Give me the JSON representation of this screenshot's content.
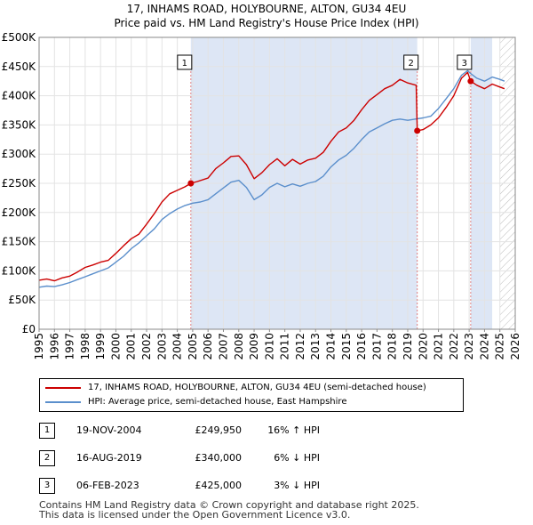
{
  "title_line1": "17, INHAMS ROAD, HOLYBOURNE, ALTON, GU34 4EU",
  "title_line2": "Price paid vs. HM Land Registry's House Price Index (HPI)",
  "chart_data": {
    "type": "line",
    "title": "17, INHAMS ROAD, HOLYBOURNE, ALTON, GU34 4EU — Price paid vs. HM Land Registry's House Price Index (HPI)",
    "xlim": [
      1995,
      2026
    ],
    "ylim": [
      0,
      500000
    ],
    "x_ticks": [
      1995,
      1996,
      1997,
      1998,
      1999,
      2000,
      2001,
      2002,
      2003,
      2004,
      2005,
      2006,
      2007,
      2008,
      2009,
      2010,
      2011,
      2012,
      2013,
      2014,
      2015,
      2016,
      2017,
      2018,
      2019,
      2020,
      2021,
      2022,
      2023,
      2024,
      2025,
      2026
    ],
    "y_ticks": [
      {
        "value": 0,
        "label": "£0"
      },
      {
        "value": 50000,
        "label": "£50K"
      },
      {
        "value": 100000,
        "label": "£100K"
      },
      {
        "value": 150000,
        "label": "£150K"
      },
      {
        "value": 200000,
        "label": "£200K"
      },
      {
        "value": 250000,
        "label": "£250K"
      },
      {
        "value": 300000,
        "label": "£300K"
      },
      {
        "value": 350000,
        "label": "£350K"
      },
      {
        "value": 400000,
        "label": "£400K"
      },
      {
        "value": 450000,
        "label": "£450K"
      },
      {
        "value": 500000,
        "label": "£500K"
      }
    ],
    "shaded_ranges": [
      [
        2004.88,
        2019.62
      ],
      [
        2023.1,
        2024.5
      ]
    ],
    "hatched_from": 2025.0,
    "series": [
      {
        "name": "17, INHAMS ROAD, HOLYBOURNE, ALTON, GU34 4EU (semi-detached house)",
        "color": "#cc0000",
        "points": [
          [
            1995.0,
            84000
          ],
          [
            1995.5,
            86000
          ],
          [
            1996.0,
            83000
          ],
          [
            1996.5,
            88000
          ],
          [
            1997.0,
            91000
          ],
          [
            1997.5,
            98000
          ],
          [
            1998.0,
            106000
          ],
          [
            1998.5,
            110000
          ],
          [
            1999.0,
            115000
          ],
          [
            1999.5,
            118000
          ],
          [
            2000.0,
            130000
          ],
          [
            2000.5,
            143000
          ],
          [
            2001.0,
            155000
          ],
          [
            2001.5,
            163000
          ],
          [
            2002.0,
            180000
          ],
          [
            2002.5,
            198000
          ],
          [
            2003.0,
            218000
          ],
          [
            2003.5,
            232000
          ],
          [
            2004.0,
            238000
          ],
          [
            2004.5,
            244000
          ],
          [
            2004.88,
            249950
          ],
          [
            2005.3,
            253000
          ],
          [
            2006.0,
            259000
          ],
          [
            2006.5,
            275000
          ],
          [
            2007.0,
            285000
          ],
          [
            2007.5,
            296000
          ],
          [
            2008.0,
            297000
          ],
          [
            2008.5,
            282000
          ],
          [
            2009.0,
            258000
          ],
          [
            2009.5,
            268000
          ],
          [
            2010.0,
            282000
          ],
          [
            2010.5,
            292000
          ],
          [
            2011.0,
            280000
          ],
          [
            2011.5,
            291000
          ],
          [
            2012.0,
            283000
          ],
          [
            2012.5,
            290000
          ],
          [
            2013.0,
            293000
          ],
          [
            2013.5,
            303000
          ],
          [
            2014.0,
            322000
          ],
          [
            2014.5,
            338000
          ],
          [
            2015.0,
            345000
          ],
          [
            2015.5,
            358000
          ],
          [
            2016.0,
            376000
          ],
          [
            2016.5,
            392000
          ],
          [
            2017.0,
            402000
          ],
          [
            2017.5,
            412000
          ],
          [
            2018.0,
            418000
          ],
          [
            2018.5,
            428000
          ],
          [
            2019.0,
            422000
          ],
          [
            2019.55,
            418000
          ],
          [
            2019.62,
            340000
          ],
          [
            2020.0,
            342000
          ],
          [
            2020.5,
            350000
          ],
          [
            2021.0,
            362000
          ],
          [
            2021.5,
            380000
          ],
          [
            2022.0,
            400000
          ],
          [
            2022.5,
            430000
          ],
          [
            2022.9,
            440000
          ],
          [
            2023.1,
            425000
          ],
          [
            2023.5,
            418000
          ],
          [
            2024.0,
            412000
          ],
          [
            2024.5,
            420000
          ],
          [
            2025.0,
            415000
          ],
          [
            2025.3,
            412000
          ]
        ]
      },
      {
        "name": "HPI: Average price, semi-detached house, East Hampshire",
        "color": "#5b8fcc",
        "points": [
          [
            1995.0,
            72000
          ],
          [
            1995.5,
            74000
          ],
          [
            1996.0,
            73000
          ],
          [
            1996.5,
            76000
          ],
          [
            1997.0,
            80000
          ],
          [
            1997.5,
            85000
          ],
          [
            1998.0,
            90000
          ],
          [
            1998.5,
            95000
          ],
          [
            1999.0,
            100000
          ],
          [
            1999.5,
            105000
          ],
          [
            2000.0,
            115000
          ],
          [
            2000.5,
            125000
          ],
          [
            2001.0,
            138000
          ],
          [
            2001.5,
            148000
          ],
          [
            2002.0,
            160000
          ],
          [
            2002.5,
            172000
          ],
          [
            2003.0,
            188000
          ],
          [
            2003.5,
            198000
          ],
          [
            2004.0,
            206000
          ],
          [
            2004.5,
            212000
          ],
          [
            2005.0,
            216000
          ],
          [
            2005.5,
            218000
          ],
          [
            2006.0,
            222000
          ],
          [
            2006.5,
            232000
          ],
          [
            2007.0,
            242000
          ],
          [
            2007.5,
            252000
          ],
          [
            2008.0,
            255000
          ],
          [
            2008.5,
            243000
          ],
          [
            2009.0,
            222000
          ],
          [
            2009.5,
            230000
          ],
          [
            2010.0,
            243000
          ],
          [
            2010.5,
            250000
          ],
          [
            2011.0,
            244000
          ],
          [
            2011.5,
            249000
          ],
          [
            2012.0,
            245000
          ],
          [
            2012.5,
            250000
          ],
          [
            2013.0,
            253000
          ],
          [
            2013.5,
            262000
          ],
          [
            2014.0,
            278000
          ],
          [
            2014.5,
            290000
          ],
          [
            2015.0,
            298000
          ],
          [
            2015.5,
            310000
          ],
          [
            2016.0,
            325000
          ],
          [
            2016.5,
            338000
          ],
          [
            2017.0,
            345000
          ],
          [
            2017.5,
            352000
          ],
          [
            2018.0,
            358000
          ],
          [
            2018.5,
            360000
          ],
          [
            2019.0,
            358000
          ],
          [
            2019.5,
            360000
          ],
          [
            2020.0,
            362000
          ],
          [
            2020.5,
            365000
          ],
          [
            2021.0,
            378000
          ],
          [
            2021.5,
            395000
          ],
          [
            2022.0,
            412000
          ],
          [
            2022.5,
            435000
          ],
          [
            2022.9,
            443000
          ],
          [
            2023.1,
            438000
          ],
          [
            2023.5,
            430000
          ],
          [
            2024.0,
            425000
          ],
          [
            2024.5,
            432000
          ],
          [
            2025.0,
            428000
          ],
          [
            2025.3,
            425000
          ]
        ]
      }
    ],
    "markers": [
      {
        "label": "1",
        "x": 2004.88,
        "y": 249950
      },
      {
        "label": "2",
        "x": 2019.62,
        "y": 340000
      },
      {
        "label": "3",
        "x": 2023.1,
        "y": 425000
      }
    ]
  },
  "legend": [
    {
      "label": "17, INHAMS ROAD, HOLYBOURNE, ALTON, GU34 4EU (semi-detached house)",
      "color": "#cc0000"
    },
    {
      "label": "HPI: Average price, semi-detached house, East Hampshire",
      "color": "#5b8fcc"
    }
  ],
  "sales": [
    {
      "num": "1",
      "date": "19-NOV-2004",
      "price": "£249,950",
      "rel": "16% ↑ HPI"
    },
    {
      "num": "2",
      "date": "16-AUG-2019",
      "price": "£340,000",
      "rel": "6% ↓ HPI"
    },
    {
      "num": "3",
      "date": "06-FEB-2023",
      "price": "£425,000",
      "rel": "3% ↓ HPI"
    }
  ],
  "footer": {
    "line1": "Contains HM Land Registry data © Crown copyright and database right 2025.",
    "line2": "This data is licensed under the Open Government Licence v3.0."
  }
}
